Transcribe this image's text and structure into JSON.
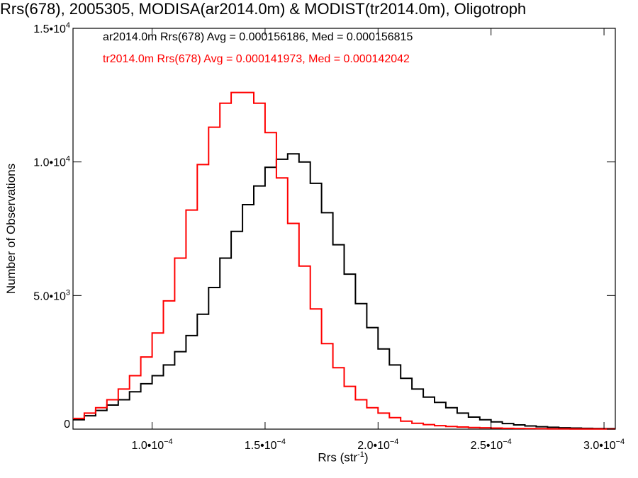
{
  "chart_data": {
    "type": "line",
    "title": "Rrs(678), 2005305, MODISA(ar2014.0m) & MODIST(tr2014.0m), Oligotroph",
    "xlabel": {
      "text": "Rrs (str",
      "sup": "-1",
      "suffix": ")"
    },
    "ylabel": "Number of Observations",
    "xlim": [
      6.5e-05,
      0.000305
    ],
    "ylim": [
      0,
      15000
    ],
    "x_ticks": [
      {
        "value": 0.0001,
        "mant": "1.0•10",
        "exp": "−4"
      },
      {
        "value": 0.00015,
        "mant": "1.5•10",
        "exp": "−4"
      },
      {
        "value": 0.0002,
        "mant": "2.0•10",
        "exp": "−4"
      },
      {
        "value": 0.00025,
        "mant": "2.5•10",
        "exp": "−4"
      },
      {
        "value": 0.0003,
        "mant": "3.0•10",
        "exp": "−4"
      }
    ],
    "y_ticks": [
      {
        "value": 0,
        "mant": "0",
        "exp": ""
      },
      {
        "value": 5000,
        "mant": "5.0•10",
        "exp": "3"
      },
      {
        "value": 10000,
        "mant": "1.0•10",
        "exp": "4"
      },
      {
        "value": 15000,
        "mant": "1.5•10",
        "exp": "4"
      }
    ],
    "grid": false,
    "legend_position": "top-left",
    "series": [
      {
        "name": "ar2014.0m Rrs(678) Avg = 0.000156186, Med = 0.000156815",
        "color": "#000000",
        "x": [
          6.5e-05,
          7e-05,
          7.5e-05,
          8e-05,
          8.5e-05,
          9e-05,
          9.5e-05,
          0.0001,
          0.000105,
          0.00011,
          0.000115,
          0.00012,
          0.000125,
          0.00013,
          0.000135,
          0.00014,
          0.000145,
          0.00015,
          0.000155,
          0.00016,
          0.000165,
          0.00017,
          0.000175,
          0.00018,
          0.000185,
          0.00019,
          0.000195,
          0.0002,
          0.000205,
          0.00021,
          0.000215,
          0.00022,
          0.000225,
          0.00023,
          0.000235,
          0.00024,
          0.000245,
          0.00025,
          0.000255,
          0.00026,
          0.000265,
          0.00027,
          0.000275,
          0.00028,
          0.000285,
          0.00029,
          0.000295,
          0.0003,
          0.000305
        ],
        "y": [
          350,
          500,
          700,
          900,
          1100,
          1400,
          1700,
          2000,
          2400,
          2900,
          3500,
          4300,
          5300,
          6400,
          7400,
          8400,
          9100,
          9800,
          10100,
          10300,
          10000,
          9200,
          8100,
          6900,
          5800,
          4700,
          3800,
          3000,
          2400,
          1900,
          1500,
          1200,
          1000,
          800,
          600,
          450,
          350,
          270,
          210,
          160,
          120,
          90,
          70,
          50,
          40,
          30,
          25,
          20,
          20
        ]
      },
      {
        "name": "tr2014.0m Rrs(678) Avg = 0.000141973, Med = 0.000142042",
        "color": "#ff0000",
        "x": [
          6.5e-05,
          7e-05,
          7.5e-05,
          8e-05,
          8.5e-05,
          9e-05,
          9.5e-05,
          0.0001,
          0.000105,
          0.00011,
          0.000115,
          0.00012,
          0.000125,
          0.00013,
          0.000135,
          0.00014,
          0.000145,
          0.00015,
          0.000155,
          0.00016,
          0.000165,
          0.00017,
          0.000175,
          0.00018,
          0.000185,
          0.00019,
          0.000195,
          0.0002,
          0.000205,
          0.00021,
          0.000215,
          0.00022,
          0.000225,
          0.00023,
          0.000235,
          0.00024,
          0.000245,
          0.00025,
          0.000255,
          0.00026,
          0.000265,
          0.00027,
          0.000275,
          0.00028,
          0.000285,
          0.00029,
          0.000295,
          0.0003,
          0.000305
        ],
        "y": [
          400,
          600,
          800,
          1100,
          1500,
          2000,
          2700,
          3600,
          4800,
          6400,
          8200,
          9900,
          11300,
          12200,
          12600,
          12600,
          12200,
          11100,
          9400,
          7700,
          6100,
          4500,
          3200,
          2300,
          1600,
          1100,
          800,
          600,
          430,
          300,
          220,
          170,
          130,
          100,
          80,
          60,
          50,
          40,
          30,
          25,
          20,
          15,
          10,
          10,
          5,
          5,
          5,
          5,
          5
        ]
      }
    ]
  }
}
